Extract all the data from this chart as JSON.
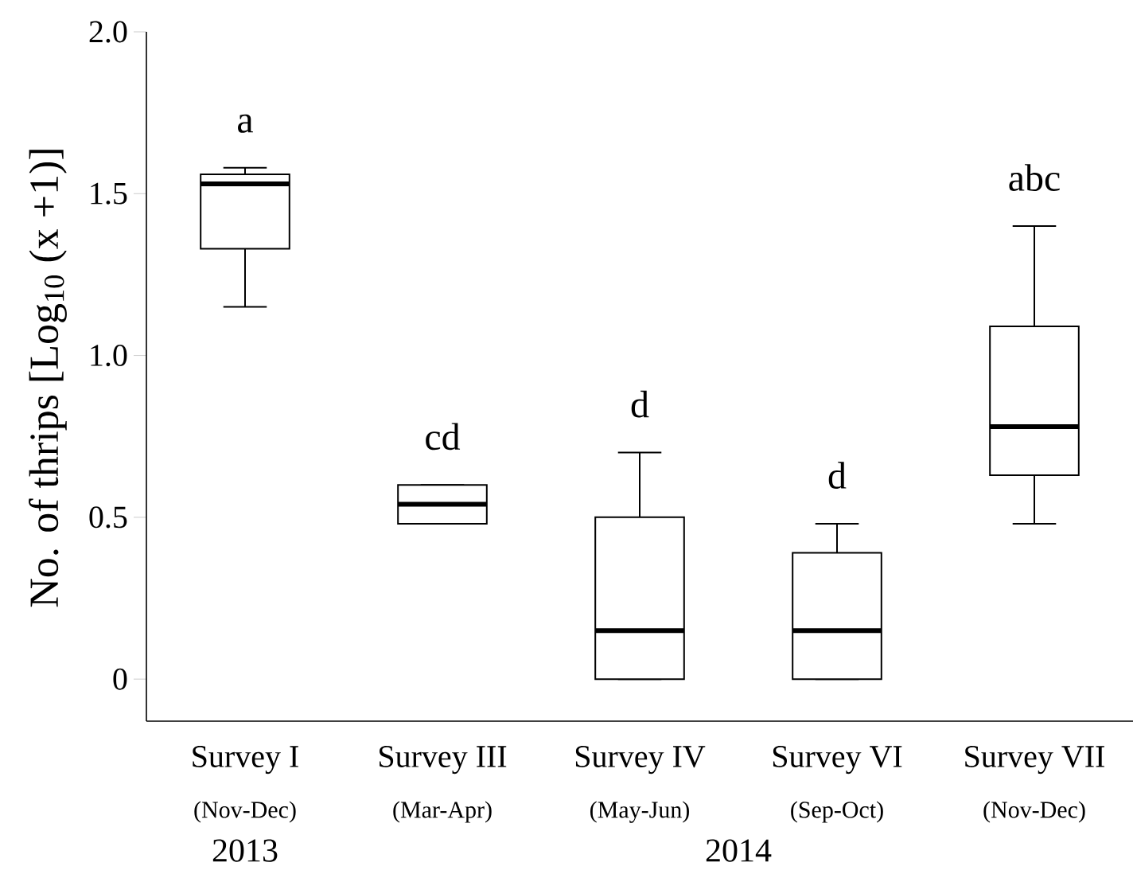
{
  "chart_data": {
    "type": "box",
    "ylabel": "No. of thrips [Log$_{10}$ (x +1)]",
    "categories": [
      "Survey I",
      "Survey III",
      "Survey IV",
      "Survey VI",
      "Survey VII"
    ],
    "boxes": [
      {
        "low": 1.15,
        "q1": 1.33,
        "median": 1.53,
        "q3": 1.56,
        "high": 1.58
      },
      {
        "low": 0.48,
        "q1": 0.48,
        "median": 0.54,
        "q3": 0.6,
        "high": 0.6
      },
      {
        "low": 0,
        "q1": 0,
        "median": 0.15,
        "q3": 0.5,
        "high": 0.7
      },
      {
        "low": 0,
        "q1": 0,
        "median": 0.15,
        "q3": 0.39,
        "high": 0.48
      },
      {
        "low": 0.48,
        "q1": 0.63,
        "median": 0.78,
        "q3": 1.09,
        "high": 1.4
      }
    ],
    "ylim": [
      -0.13,
      2.0
    ],
    "yticks": [
      0,
      0.5,
      {
        "value": 1,
        "label": "1.0"
      },
      1.5,
      {
        "value": 2,
        "label": "2.0"
      }
    ],
    "annotations": [
      "a",
      "cd",
      "d",
      "d",
      "abc",
      "(Nov-Dec)",
      "(Mar-Apr)",
      "(May-Jun)",
      "(Sep-Oct)",
      "(Nov-Dec)",
      "2013",
      "2014"
    ],
    "grid": false
  }
}
